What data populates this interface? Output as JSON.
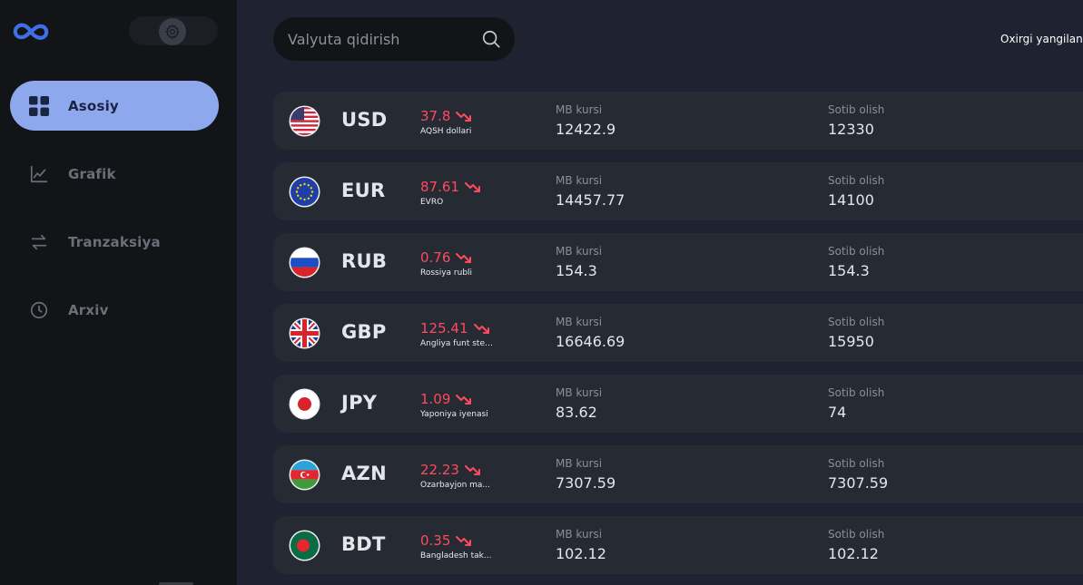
{
  "sidebar": {
    "logo_icon": "infinity-logo-icon",
    "settings_icon": "gear-icon",
    "nav": [
      {
        "label": "Asosiy",
        "icon": "grid-icon",
        "active": true
      },
      {
        "label": "Grafik",
        "icon": "line-chart-icon",
        "active": false
      },
      {
        "label": "Tranzaksiya",
        "icon": "transfer-arrows-icon",
        "active": false
      },
      {
        "label": "Arxiv",
        "icon": "clock-icon",
        "active": false
      }
    ]
  },
  "header": {
    "search_placeholder": "Valyuta qidirish",
    "search_icon": "search-icon",
    "last_updated_label": "Oxirgi yangilan"
  },
  "colors": {
    "accent": "#8ea8ee",
    "negative": "#ff4a5e",
    "background": "#1f2230",
    "sidebar": "#121418",
    "card": "#262a33"
  },
  "currencies": [
    {
      "code": "USD",
      "change": "37.8",
      "name": "AQSH dollari",
      "mb_label": "MB kursi",
      "mb_value": "12422.9",
      "buy_label": "Sotib olish",
      "buy_value": "12330",
      "flag": "us-flag-icon"
    },
    {
      "code": "EUR",
      "change": "87.61",
      "name": "EVRO",
      "mb_label": "MB kursi",
      "mb_value": "14457.77",
      "buy_label": "Sotib olish",
      "buy_value": "14100",
      "flag": "eu-flag-icon"
    },
    {
      "code": "RUB",
      "change": "0.76",
      "name": "Rossiya rubli",
      "mb_label": "MB kursi",
      "mb_value": "154.3",
      "buy_label": "Sotib olish",
      "buy_value": "154.3",
      "flag": "ru-flag-icon"
    },
    {
      "code": "GBP",
      "change": "125.41",
      "name": "Angliya funt ster...",
      "mb_label": "MB kursi",
      "mb_value": "16646.69",
      "buy_label": "Sotib olish",
      "buy_value": "15950",
      "flag": "gb-flag-icon"
    },
    {
      "code": "JPY",
      "change": "1.09",
      "name": "Yaponiya iyenasi",
      "mb_label": "MB kursi",
      "mb_value": "83.62",
      "buy_label": "Sotib olish",
      "buy_value": "74",
      "flag": "jp-flag-icon"
    },
    {
      "code": "AZN",
      "change": "22.23",
      "name": "Ozarbayjon ma...",
      "mb_label": "MB kursi",
      "mb_value": "7307.59",
      "buy_label": "Sotib olish",
      "buy_value": "7307.59",
      "flag": "az-flag-icon"
    },
    {
      "code": "BDT",
      "change": "0.35",
      "name": "Bangladesh tak...",
      "mb_label": "MB kursi",
      "mb_value": "102.12",
      "buy_label": "Sotib olish",
      "buy_value": "102.12",
      "flag": "bd-flag-icon"
    }
  ]
}
